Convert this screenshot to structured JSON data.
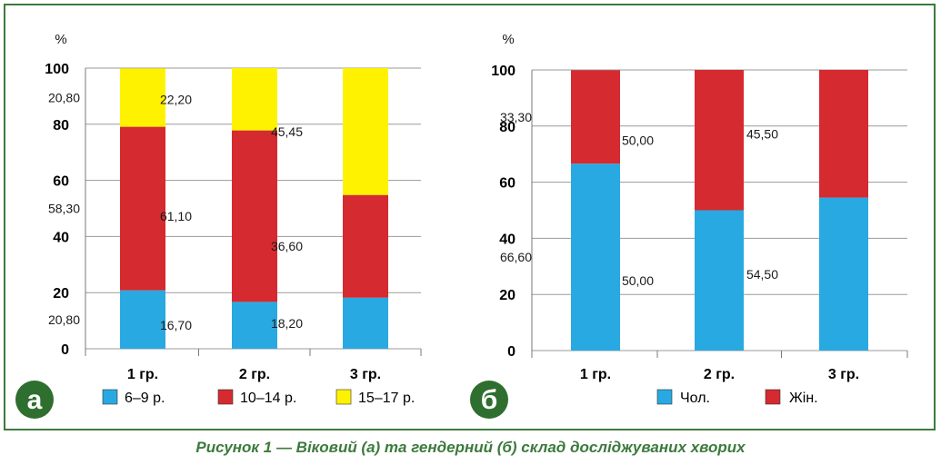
{
  "caption": "Рисунок 1 — Віковий (а) та гендерний (б) склад досліджуваних хворих",
  "chart_data": [
    {
      "type": "bar",
      "stacked": true,
      "panel_label": "а",
      "unit": "%",
      "ylim": [
        0,
        100
      ],
      "yticks": [
        0,
        20,
        40,
        60,
        80,
        100
      ],
      "grid": true,
      "legend_position": "bottom",
      "categories": [
        "1 гр.",
        "2 гр.",
        "3 гр."
      ],
      "series": [
        {
          "name": "6–9 р.",
          "color": "#29a9e1",
          "values": [
            20.8,
            16.7,
            18.2
          ],
          "labels": [
            "20,80",
            "16,70",
            "18,20"
          ]
        },
        {
          "name": "10–14 р.",
          "color": "#d52a2f",
          "values": [
            58.3,
            61.1,
            36.6
          ],
          "labels": [
            "58,30",
            "61,10",
            "36,60"
          ]
        },
        {
          "name": "15–17 р.",
          "color": "#fff200",
          "values": [
            20.8,
            22.2,
            45.45
          ],
          "labels": [
            "20,80",
            "22,20",
            "45,45"
          ]
        }
      ]
    },
    {
      "type": "bar",
      "stacked": true,
      "panel_label": "б",
      "unit": "%",
      "ylim": [
        0,
        100
      ],
      "yticks": [
        0,
        20,
        40,
        60,
        80,
        100
      ],
      "grid": true,
      "legend_position": "bottom",
      "categories": [
        "1 гр.",
        "2 гр.",
        "3 гр."
      ],
      "series": [
        {
          "name": "Чол.",
          "color": "#29a9e1",
          "values": [
            66.6,
            50.0,
            54.5
          ],
          "labels": [
            "66,60",
            "50,00",
            "54,50"
          ]
        },
        {
          "name": "Жін.",
          "color": "#d52a2f",
          "values": [
            33.3,
            50.0,
            45.5
          ],
          "labels": [
            "33,30",
            "50,00",
            "45,50"
          ]
        }
      ]
    }
  ]
}
